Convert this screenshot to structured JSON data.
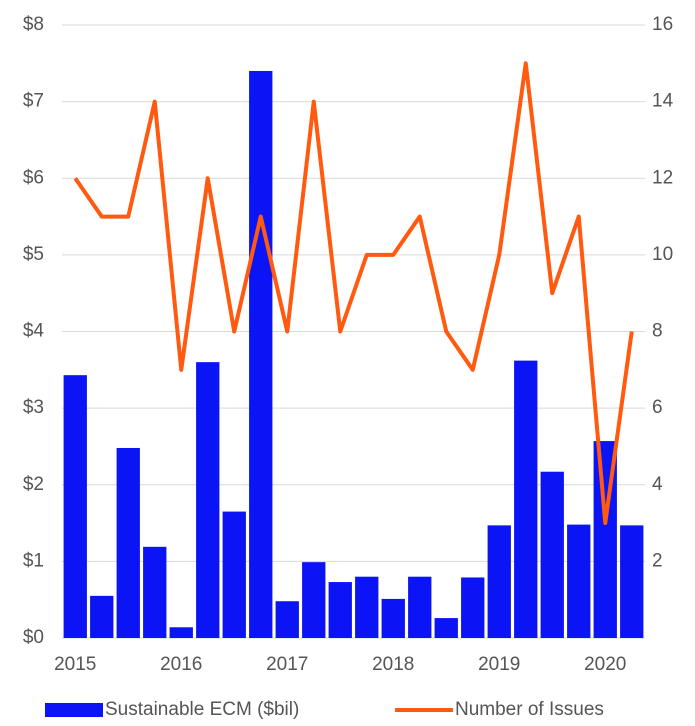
{
  "chart_data": {
    "type": "bar_line",
    "categories": [
      "2015",
      null,
      null,
      null,
      "2016",
      null,
      null,
      null,
      "2017",
      null,
      null,
      null,
      "2018",
      null,
      null,
      null,
      "2019",
      null,
      null,
      null,
      "2020",
      null
    ],
    "series": [
      {
        "name": "Sustainable ECM ($bil)",
        "color": "#0a14f5",
        "type": "bar",
        "values": [
          3.43,
          0.55,
          2.48,
          1.19,
          0.14,
          3.6,
          1.65,
          7.4,
          0.48,
          0.99,
          0.73,
          0.8,
          0.51,
          0.8,
          0.26,
          0.79,
          1.47,
          3.62,
          2.17,
          1.48,
          2.57,
          1.47
        ]
      },
      {
        "name": "Number of Issues",
        "color": "#ff5a0f",
        "type": "line",
        "axis": "y2",
        "values": [
          12,
          11,
          11,
          14,
          7,
          12,
          8,
          11,
          8,
          14,
          8,
          10,
          10,
          11,
          8,
          7,
          10,
          15,
          9,
          11,
          3,
          8
        ]
      }
    ],
    "ylim": [
      0,
      8
    ],
    "yticks": [
      {
        "value": 0,
        "label": "$0"
      },
      {
        "value": 1,
        "label": "$1"
      },
      {
        "value": 2,
        "label": "$2"
      },
      {
        "value": 3,
        "label": "$3"
      },
      {
        "value": 4,
        "label": "$4"
      },
      {
        "value": 5,
        "label": "$5"
      },
      {
        "value": 6,
        "label": "$6"
      },
      {
        "value": 7,
        "label": "$7"
      },
      {
        "value": 8,
        "label": "$8"
      }
    ],
    "y2lim": [
      0,
      16
    ],
    "y2ticks": [
      2,
      4,
      6,
      8,
      10,
      12,
      14,
      16
    ],
    "grid": true
  }
}
